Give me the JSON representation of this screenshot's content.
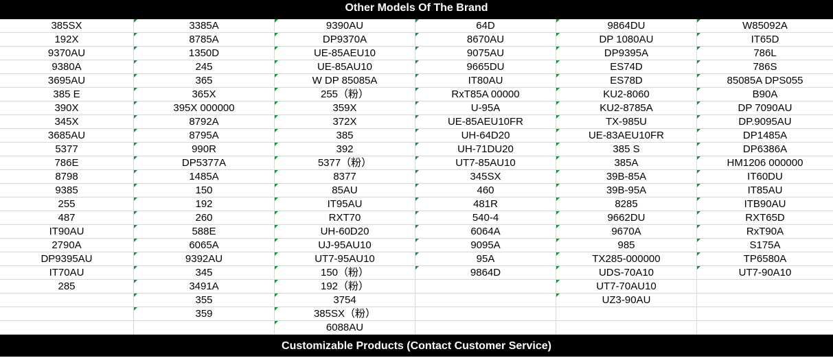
{
  "header": {
    "title": "Other Models Of The Brand"
  },
  "footer": {
    "title": "Customizable Products (Contact Customer Service)"
  },
  "table": {
    "columns": [
      [
        "385SX",
        "192X",
        "9370AU",
        "9380A",
        "3695AU",
        "385 E",
        "390X",
        "345X",
        "3685AU",
        "5377",
        "786E",
        "8798",
        "9385",
        "255",
        "487",
        "IT90AU",
        "2790A",
        "DP9395AU",
        "IT70AU",
        "285",
        "",
        "",
        ""
      ],
      [
        "3385A",
        "8785A",
        "1350D",
        "245",
        "365",
        "365X",
        "395X 000000",
        "8792A",
        "8795A",
        "990R",
        "DP5377A",
        "1485A",
        "150",
        "192",
        "260",
        "588E",
        "6065A",
        "9392AU",
        "345",
        "3491A",
        "355",
        "359",
        ""
      ],
      [
        "9390AU",
        "DP9370A",
        "UE-85AEU10",
        "UE-85AU10",
        "W DP 85085A",
        "255（粉）",
        "359X",
        "372X",
        "385",
        "392",
        "5377（粉）",
        "8377",
        "85AU",
        "IT95AU",
        "RXT70",
        "UH-60D20",
        "UJ-95AU10",
        "UT7-95AU10",
        "150（粉）",
        "192（粉）",
        "3754",
        "385SX（粉）",
        "6088AU"
      ],
      [
        "64D",
        "8670AU",
        "9075AU",
        "9665DU",
        "IT80AU",
        "RxT85A 00000",
        "U-95A",
        "UE-85AEU10FR",
        "UH-64D20",
        "UH-71DU20",
        "UT7-85AU10",
        "345SX",
        "460",
        "481R",
        "540-4",
        "6064A",
        "9095A",
        "95A",
        "9864D",
        "",
        "",
        "",
        ""
      ],
      [
        "9864DU",
        "DP 1080AU",
        "DP9395A",
        "ES74D",
        "ES78D",
        "KU2-8060",
        "KU2-8785A",
        "TX-985U",
        "UE-83AEU10FR",
        "385 S",
        "385A",
        "39B-85A",
        "39B-95A",
        "8285",
        "9662DU",
        "9670A",
        "985",
        "TX285-000000",
        "UDS-70A10",
        "UT7-70AU10",
        "UZ3-90AU",
        "",
        ""
      ],
      [
        "W85092A",
        "IT65D",
        "786L",
        "786S",
        "85085A DPS055",
        "B90A",
        "DP 7090AU",
        "DP.9095AU",
        "DP1485A",
        "DP6386A",
        "HM1206 000000",
        "IT60DU",
        "IT85AU",
        "ITB90AU",
        "RXT65D",
        "RxT90A",
        "S175A",
        "TP6580A",
        "UT7-90A10",
        "",
        "",
        "",
        ""
      ]
    ]
  }
}
